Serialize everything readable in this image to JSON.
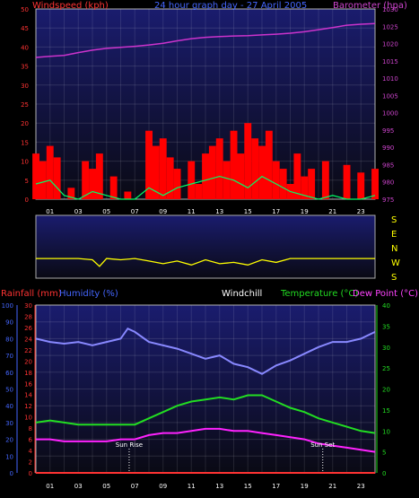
{
  "colors": {
    "background": "#000000",
    "panel_top": "#1a1c6e",
    "panel_bottom": "#0a0a12",
    "grid": "#ffffff",
    "windspeed": "#ff0000",
    "gust_light": "#ffffff",
    "wind_avg": "#00ff66",
    "barometer": "#cc33cc",
    "wind_dir": "#ffff00",
    "humidity": "#8888ff",
    "temperature": "#22dd22",
    "dewpoint": "#ff22ff",
    "rainfall": "#ff3333",
    "text_red": "#ff3333",
    "text_blue": "#4466ff",
    "text_magenta": "#cc44cc",
    "text_white": "#ffffff",
    "text_green": "#22dd22",
    "text_yellow": "#ffff00"
  },
  "header_top": {
    "windspeed_label": "Windspeed (kph)",
    "title": "24 hour graph day - 27 April 2005",
    "barometer_label": "Barometer (hpa)"
  },
  "header_bottom": {
    "rainfall_label": "Rainfall (mm)",
    "humidity_label": "Humidity (%)",
    "windchill_label": "Windchill",
    "temperature_label": "Temperature (°C)",
    "dewpoint_label": "Dew Point (°C)"
  },
  "compass": [
    "S",
    "E",
    "N",
    "W",
    "S"
  ],
  "sun_labels": {
    "sunrise": "Sun Rise",
    "sunset": "Sun Set"
  },
  "chart_data": [
    {
      "type": "line",
      "name": "wind-and-pressure",
      "x_ticks": [
        "01",
        "03",
        "05",
        "07",
        "09",
        "11",
        "13",
        "15",
        "17",
        "19",
        "21",
        "23"
      ],
      "x_range_hours": [
        0,
        24
      ],
      "left_axis": {
        "label": "Windspeed (kph)",
        "ylim": [
          0,
          50
        ],
        "ticks": [
          "0",
          "5",
          "10",
          "15",
          "20",
          "25",
          "30",
          "35",
          "40",
          "45",
          "50"
        ]
      },
      "right_axis": {
        "label": "Barometer (hpa)",
        "ylim": [
          975,
          1030
        ],
        "ticks": [
          "975",
          "980",
          "985",
          "990",
          "995",
          "1000",
          "1005",
          "1010",
          "1015",
          "1020",
          "1025",
          "1030"
        ]
      },
      "series": [
        {
          "name": "Barometer (hpa)",
          "axis": "right",
          "x": [
            0,
            1,
            2,
            3,
            4,
            5,
            6,
            7,
            8,
            9,
            10,
            11,
            12,
            13,
            14,
            15,
            16,
            17,
            18,
            19,
            20,
            21,
            22,
            23,
            24
          ],
          "values": [
            1016,
            1016.3,
            1016.6,
            1017.4,
            1018.1,
            1018.6,
            1018.9,
            1019.2,
            1019.6,
            1020.1,
            1020.8,
            1021.4,
            1021.8,
            1022.0,
            1022.2,
            1022.3,
            1022.5,
            1022.7,
            1023.0,
            1023.4,
            1024,
            1024.6,
            1025.3,
            1025.6,
            1025.8
          ]
        },
        {
          "name": "Windspeed (kph)",
          "axis": "left",
          "x": [
            0,
            0.5,
            1,
            1.5,
            2,
            2.5,
            3,
            3.5,
            4,
            4.5,
            5,
            5.5,
            6,
            6.5,
            7,
            7.5,
            8,
            8.5,
            9,
            9.5,
            10,
            10.5,
            11,
            11.5,
            12,
            12.5,
            13,
            13.5,
            14,
            14.5,
            15,
            15.5,
            16,
            16.5,
            17,
            17.5,
            18,
            18.5,
            19,
            19.5,
            20,
            20.5,
            21,
            21.5,
            22,
            22.5,
            23,
            23.5,
            24
          ],
          "values": [
            12,
            10,
            14,
            11,
            0,
            3,
            0,
            10,
            8,
            12,
            0,
            6,
            0,
            2,
            0,
            0,
            18,
            14,
            16,
            11,
            8,
            0,
            10,
            4,
            12,
            14,
            16,
            10,
            18,
            12,
            20,
            16,
            14,
            18,
            10,
            8,
            4,
            12,
            6,
            8,
            0,
            10,
            0,
            0,
            9,
            0,
            7,
            0,
            8
          ]
        },
        {
          "name": "Wind average",
          "axis": "left",
          "x": [
            0,
            1,
            2,
            3,
            4,
            5,
            6,
            7,
            8,
            9,
            10,
            11,
            12,
            13,
            14,
            15,
            16,
            17,
            18,
            19,
            20,
            21,
            22,
            23,
            24
          ],
          "values": [
            4,
            5,
            1,
            0,
            2,
            1,
            0,
            0,
            3,
            1,
            3,
            4,
            5,
            6,
            5,
            3,
            6,
            4,
            2,
            1,
            0,
            1,
            0,
            0,
            1
          ]
        }
      ]
    },
    {
      "type": "line",
      "name": "wind-direction",
      "x_range_hours": [
        0,
        24
      ],
      "y_levels": [
        "S",
        "E",
        "N",
        "W",
        "S"
      ],
      "series": [
        {
          "name": "Wind direction",
          "x": [
            0,
            1,
            2,
            3,
            4,
            4.5,
            5,
            6,
            7,
            8,
            9,
            10,
            11,
            12,
            13,
            14,
            15,
            16,
            17,
            18,
            19,
            20,
            21,
            22,
            23,
            24
          ],
          "values": [
            2.9,
            2.9,
            2.9,
            2.9,
            3.0,
            3.5,
            2.9,
            3.0,
            2.9,
            3.1,
            3.3,
            3.1,
            3.4,
            3.0,
            3.3,
            3.2,
            3.4,
            3.0,
            3.2,
            2.9,
            2.9,
            2.9,
            2.9,
            2.9,
            2.9,
            2.9
          ]
        }
      ]
    },
    {
      "type": "line",
      "name": "temperature-humidity",
      "x_ticks": [
        "01",
        "03",
        "05",
        "07",
        "09",
        "11",
        "13",
        "15",
        "17",
        "19",
        "21",
        "23"
      ],
      "x_range_hours": [
        0,
        24
      ],
      "humidity_axis": {
        "label": "Humidity (%)",
        "ylim": [
          0,
          100
        ],
        "ticks": [
          "0",
          "10",
          "20",
          "30",
          "40",
          "50",
          "60",
          "70",
          "80",
          "90",
          "100"
        ]
      },
      "rainfall_axis": {
        "label": "Rainfall (mm)",
        "ylim": [
          0,
          30
        ],
        "ticks": [
          "0",
          "2",
          "4",
          "6",
          "8",
          "10",
          "12",
          "14",
          "16",
          "18",
          "20",
          "22",
          "24",
          "26",
          "28",
          "30"
        ]
      },
      "temperature_axis": {
        "label": "Temperature (°C)",
        "ylim": [
          0,
          40
        ],
        "ticks": [
          "0",
          "5",
          "10",
          "15",
          "20",
          "25",
          "30",
          "35",
          "40"
        ]
      },
      "series": [
        {
          "name": "Humidity (%)",
          "axis": "humidity",
          "x": [
            0,
            1,
            2,
            3,
            4,
            5,
            6,
            6.5,
            7,
            8,
            9,
            10,
            11,
            12,
            13,
            14,
            15,
            16,
            17,
            18,
            19,
            20,
            21,
            22,
            23,
            24
          ],
          "values": [
            80,
            78,
            77,
            78,
            76,
            78,
            80,
            86,
            84,
            78,
            76,
            74,
            71,
            68,
            70,
            65,
            63,
            59,
            64,
            67,
            71,
            75,
            78,
            78,
            80,
            84
          ]
        },
        {
          "name": "Temperature (°C)",
          "axis": "temperature",
          "x": [
            0,
            1,
            2,
            3,
            4,
            5,
            6,
            7,
            8,
            9,
            10,
            11,
            12,
            13,
            14,
            15,
            16,
            17,
            18,
            19,
            20,
            21,
            22,
            23,
            24
          ],
          "values": [
            12,
            12.5,
            12,
            11.5,
            11.5,
            11.5,
            11.5,
            11.5,
            13,
            14.5,
            16,
            17,
            17.5,
            18,
            17.5,
            18.5,
            18.5,
            17,
            15.5,
            14.5,
            13,
            12,
            11,
            10,
            9.5
          ]
        },
        {
          "name": "Dew Point (°C)",
          "axis": "temperature",
          "x": [
            0,
            1,
            2,
            3,
            4,
            5,
            6,
            7,
            8,
            9,
            10,
            11,
            12,
            13,
            14,
            15,
            16,
            17,
            18,
            19,
            20,
            21,
            22,
            23,
            24
          ],
          "values": [
            8,
            8,
            7.5,
            7.5,
            7.5,
            7.5,
            8,
            8,
            9,
            9.5,
            9.5,
            10,
            10.5,
            10.5,
            10,
            10,
            9.5,
            9,
            8.5,
            8,
            7,
            6.5,
            6,
            5.5,
            5
          ]
        },
        {
          "name": "Rainfall (mm)",
          "axis": "rainfall",
          "x": [
            0,
            24
          ],
          "values": [
            0,
            0
          ]
        }
      ],
      "markers": [
        {
          "label": "Sun Rise",
          "x": 6.6
        },
        {
          "label": "Sun Set",
          "x": 20.3
        }
      ]
    }
  ]
}
